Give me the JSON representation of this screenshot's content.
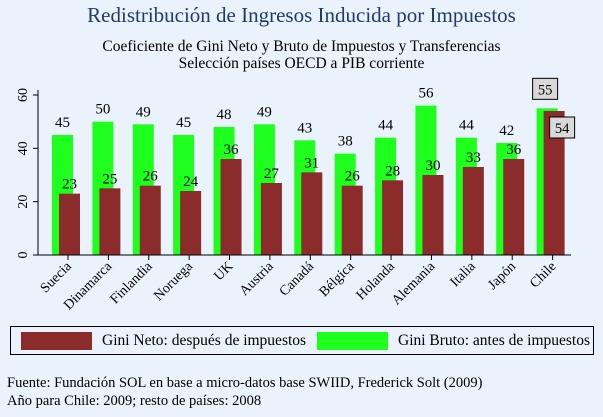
{
  "title": "Redistribución de Ingresos Inducida por Impuestos",
  "subtitle_line1": "Coeficiente de Gini Neto y Bruto de Impuestos y Transferencias",
  "subtitle_line2": "Selección países OECD a PIB corriente",
  "colors": {
    "gini_neto": "#8b2b2b",
    "gini_bruto": "#1eff1e",
    "background": "#eaf2fb",
    "title": "#1f3b6e"
  },
  "chart_data": {
    "type": "bar",
    "categories": [
      "Suecia",
      "Dinamarca",
      "Finlandia",
      "Noruega",
      "UK",
      "Austria",
      "Canadá",
      "Bélgica",
      "Holanda",
      "Alemania",
      "Italia",
      "Japón",
      "Chile"
    ],
    "series": [
      {
        "name": "Gini Bruto: antes de impuestos",
        "values": [
          45,
          50,
          49,
          45,
          48,
          49,
          43,
          38,
          44,
          56,
          44,
          42,
          55
        ]
      },
      {
        "name": "Gini Neto: después de impuestos",
        "values": [
          23,
          25,
          26,
          24,
          36,
          27,
          31,
          26,
          28,
          30,
          33,
          36,
          54
        ]
      }
    ],
    "y_ticks": [
      "0",
      "20",
      "40",
      "60"
    ],
    "ylim": [
      0,
      60
    ],
    "grid": false,
    "legend_position": "bottom"
  },
  "legend": {
    "neto_label": "Gini Neto: después de impuestos",
    "bruto_label": "Gini Bruto: antes de impuestos"
  },
  "footnote_line1": "Fuente: Fundación SOL en base a micro-datos base SWIID, Frederick Solt (2009)",
  "footnote_line2": "Año para Chile: 2009; resto de países: 2008"
}
